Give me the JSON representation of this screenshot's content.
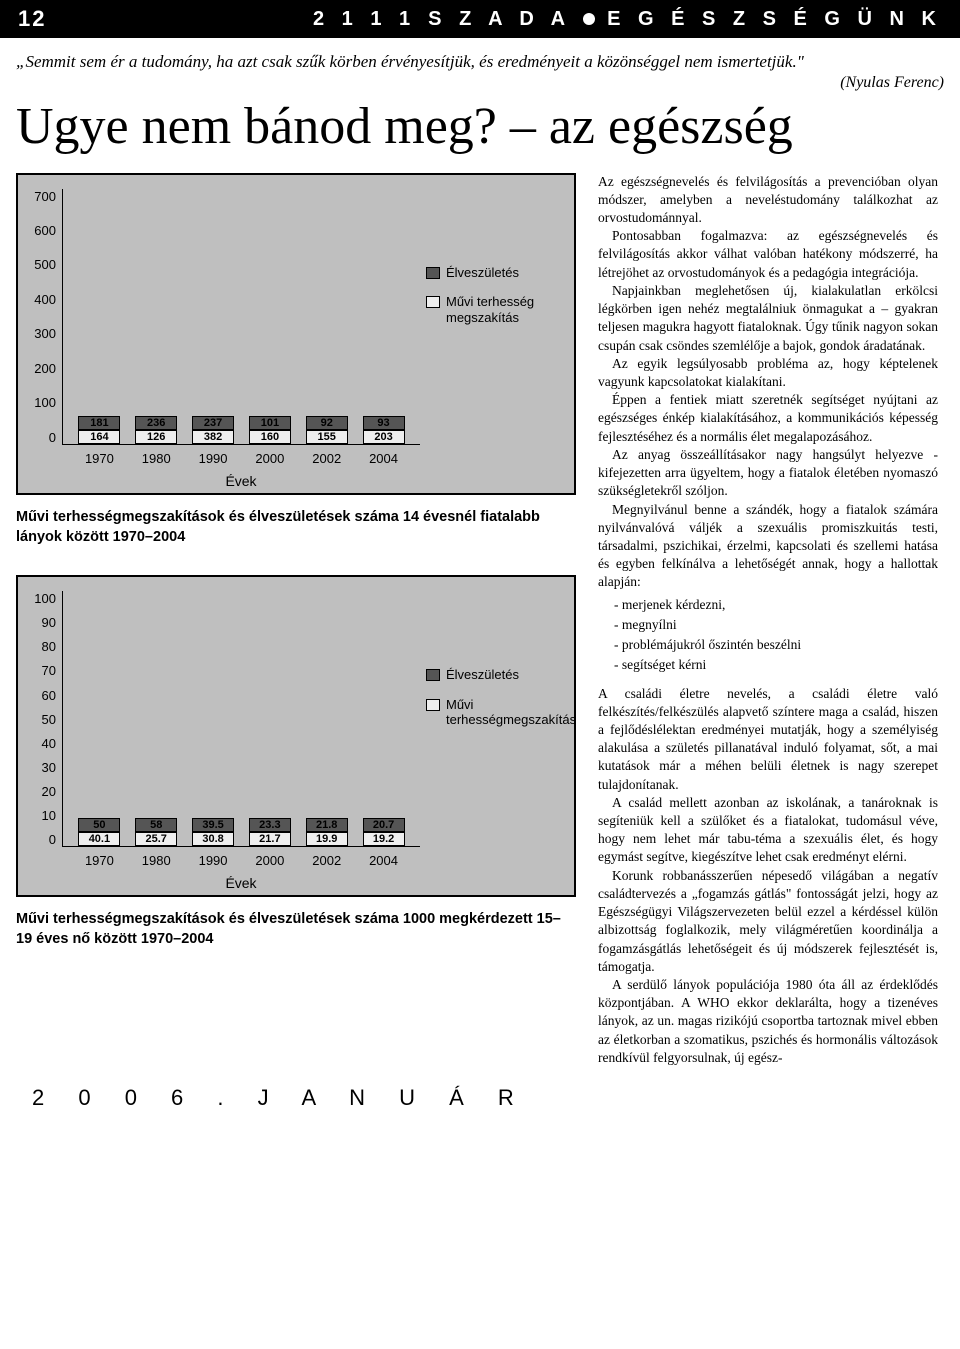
{
  "header": {
    "page_number": "12",
    "title_left": "2 1 1 1",
    "title_mid": "S Z A D A",
    "title_right": "E G É S Z S É G Ü N K"
  },
  "quote": {
    "text": "„Semmit sem ér a tudomány, ha azt csak szűk körben érvényesítjük, és eredményeit a közönséggel nem ismertetjük.\"",
    "attr": "(Nyulas Ferenc)"
  },
  "headline": "Ugye nem bánod meg? – az egészség",
  "chart1": {
    "type": "stacked-bar",
    "y_ticks": [
      "700",
      "600",
      "500",
      "400",
      "300",
      "200",
      "100",
      "0"
    ],
    "y_max": 700,
    "x_title": "Évek",
    "categories": [
      "1970",
      "1980",
      "1990",
      "2000",
      "2002",
      "2004"
    ],
    "series_dark_label": "Élveszületés",
    "series_light_label": "Művi terhesség megszakítás",
    "dark_values": [
      181,
      236,
      237,
      101,
      92,
      93
    ],
    "light_values": [
      164,
      126,
      382,
      160,
      155,
      203
    ],
    "bar_colors": {
      "dark": "#555555",
      "light": "#eeeeee"
    },
    "background": "#bfbfbf",
    "caption": "Művi terhességmegszakítások és élveszületések száma 14 évesnél fiatalabb lányok között 1970–2004"
  },
  "chart2": {
    "type": "stacked-bar",
    "y_ticks": [
      "100",
      "90",
      "80",
      "70",
      "60",
      "50",
      "40",
      "30",
      "20",
      "10",
      "0"
    ],
    "y_max": 100,
    "x_title": "Évek",
    "categories": [
      "1970",
      "1980",
      "1990",
      "2000",
      "2002",
      "2004"
    ],
    "series_dark_label": "Élveszületés",
    "series_light_label": "Művi terhességmegszakítás",
    "dark_values": [
      50,
      58,
      39.5,
      23.3,
      21.8,
      20.7
    ],
    "light_values": [
      40.1,
      25.7,
      30.8,
      21.7,
      19.9,
      19.2
    ],
    "bar_colors": {
      "dark": "#555555",
      "light": "#eeeeee"
    },
    "background": "#bfbfbf",
    "caption": "Művi terhességmegszakítások és élveszületések száma 1000 megkérdezett 15–19 éves nő között 1970–2004"
  },
  "body": {
    "p1": "Az egészségnevelés és felvilágosítás a prevencióban olyan módszer, amelyben a neveléstudomány találkozhat az orvostudománnyal.",
    "p2": "Pontosabban fogalmazva: az egészségnevelés és felvilágosítás akkor válhat valóban hatékony módszerré, ha létrejöhet az orvostudományok és a pedagógia integrációja.",
    "p3": "Napjainkban meglehetősen új, kialakulatlan erkölcsi légkörben igen nehéz megtalálniuk önmagukat a – gyakran teljesen magukra hagyott fiataloknak. Úgy tűnik nagyon sokan csupán csak csöndes szemlélője a bajok, gondok áradatának.",
    "p4": "Az egyik legsúlyosabb probléma az, hogy képtelenek vagyunk kapcsolatokat kialakítani.",
    "p5": "Éppen a fentiek miatt szeretnék segítséget nyújtani az egészséges énkép kialakításához, a kommunikációs képesség fejlesztéséhez és a normális élet megalapozásához.",
    "p6": "Az anyag összeállításakor nagy hangsúlyt helyezve - kifejezetten arra ügyeltem, hogy a fiatalok életében nyomaszó szükségletekről szóljon.",
    "p7": "Megnyilvánul benne a szándék, hogy a fiatalok számára nyilvánvalóvá váljék a szexuális promiszkuitás testi, társadalmi, pszichikai, érzelmi, kapcsolati és szellemi hatása és egyben felkínálva a lehetőségét annak, hogy a hallottak alapján:",
    "b1": "- merjenek kérdezni,",
    "b2": "- megnyílni",
    "b3": "- problémájukról őszintén beszélni",
    "b4": "- segítséget kérni",
    "p8": "A családi életre nevelés, a családi életre való felkészítés/felkészülés alapvető színtere maga a család, hiszen a fejlődéslélektan eredményei mutatják, hogy a személyiség alakulása a születés pillanatával induló folyamat, sőt, a mai kutatások már a méhen belüli életnek is nagy szerepet tulajdonítanak.",
    "p9": "A család mellett azonban az iskolának, a tanároknak is segíteniük kell a szülőket és a fiatalokat, tudomásul véve, hogy nem lehet már tabu-téma a szexuális élet, és hogy egymást segítve, kiegészítve lehet csak eredményt elérni.",
    "p10": "Korunk robbanásszerűen népesedő világában a negatív családtervezés a „fogamzás gátlás\" fontosságát jelzi, hogy az Egészségügyi Világszervezeten belül ezzel a kérdéssel külön albizottság foglalkozik, mely világméretűen koordinálja a fogamzásgátlás lehetőségeit és új módszerek fejlesztését is, támogatja.",
    "p11": "A serdülő lányok populációja 1980 óta áll az érdeklődés központjában. A WHO ekkor deklarálta, hogy a tizenéves lányok, az un. magas rizikójú csoportba tartoznak mivel ebben az életkorban a szomatikus, pszichés és hormonális változások rendkívül felgyorsulnak, új egész-"
  },
  "footer": "2 0 0 6 .   J A N U Á R"
}
